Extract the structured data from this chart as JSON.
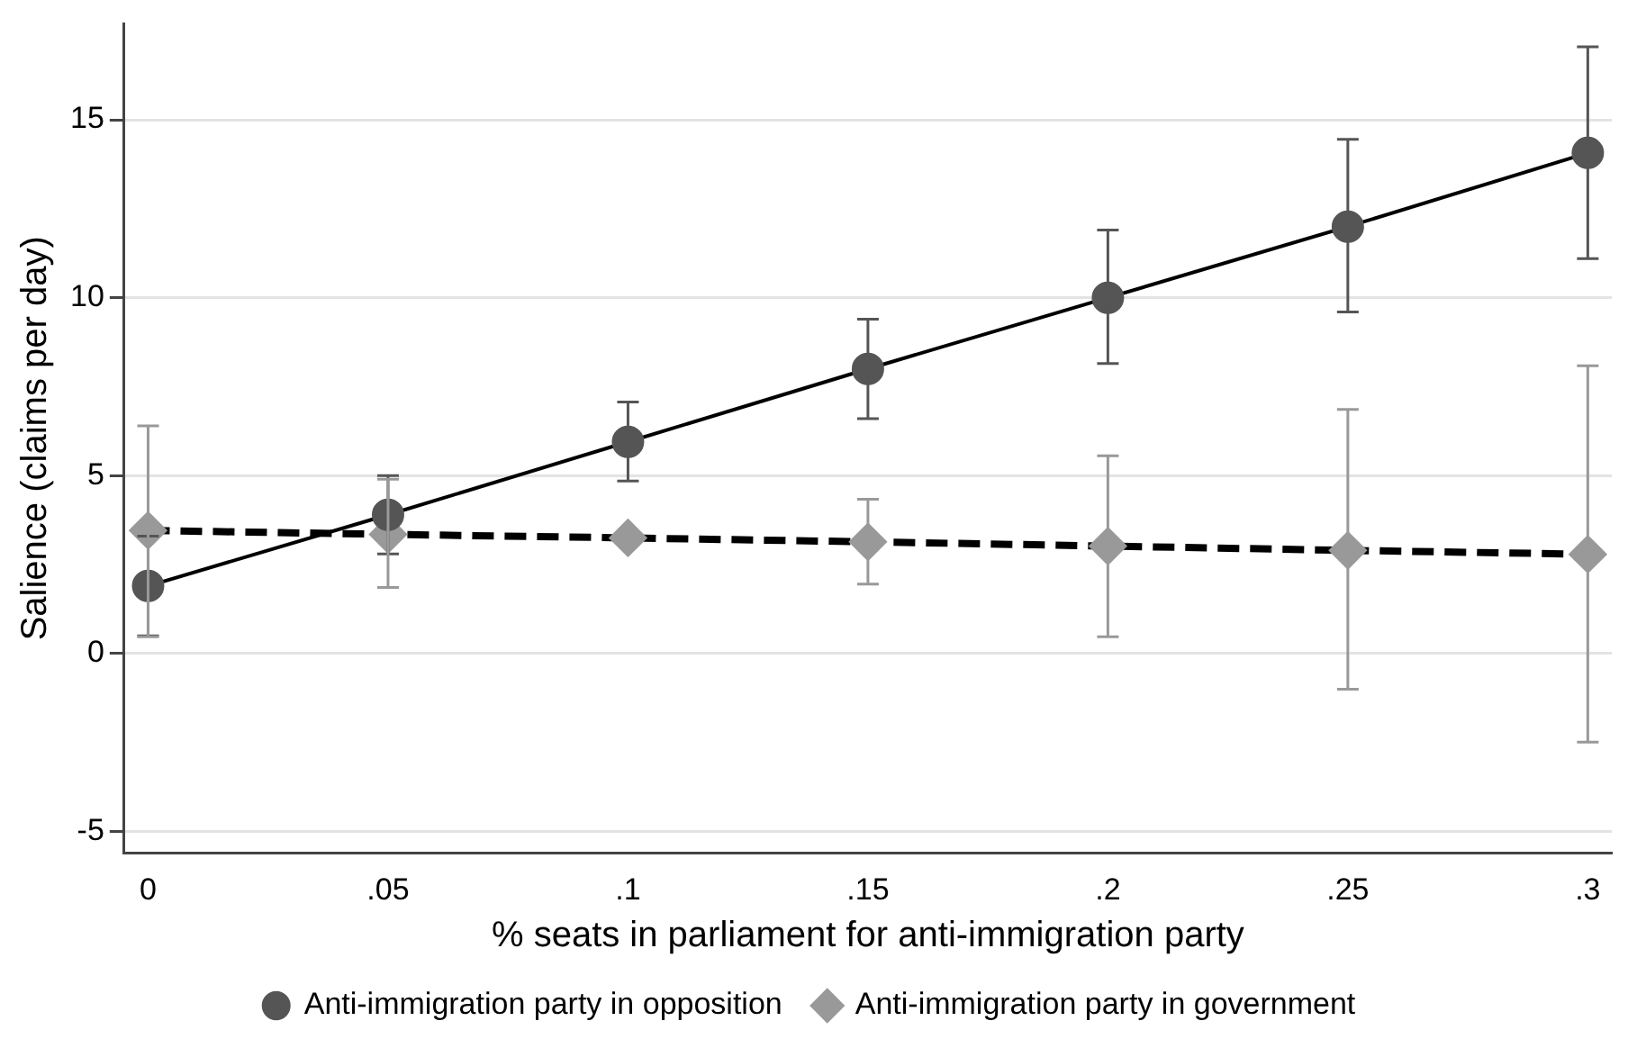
{
  "chart_data": {
    "type": "line",
    "xlabel": "% seats in parliament for anti-immigration party",
    "ylabel": "Salience (claims per day)",
    "x": [
      0,
      0.05,
      0.1,
      0.15,
      0.2,
      0.25,
      0.3
    ],
    "series": [
      {
        "name": "Anti-immigration party in opposition",
        "color": "#555555",
        "marker": "circle",
        "line_style": "solid",
        "values": [
          1.9,
          3.9,
          5.95,
          8.0,
          10.0,
          12.0,
          14.07
        ],
        "errors": [
          [
            0.5,
            3.3
          ],
          [
            2.8,
            5.0
          ],
          [
            4.85,
            7.07
          ],
          [
            6.6,
            9.4
          ],
          [
            8.15,
            11.9
          ],
          [
            9.6,
            14.45
          ],
          [
            11.1,
            17.05
          ]
        ]
      },
      {
        "name": "Anti-immigration party in government",
        "color": "#999999",
        "marker": "diamond",
        "line_style": "dashed",
        "values": [
          3.46,
          3.35,
          3.25,
          3.14,
          3.02,
          2.9,
          2.79
        ],
        "errors": [
          [
            0.47,
            6.4
          ],
          [
            1.86,
            4.9
          ],
          null,
          [
            1.95,
            4.34
          ],
          [
            0.47,
            5.56
          ],
          [
            -1.0,
            6.86
          ],
          [
            -2.49,
            8.09
          ]
        ]
      }
    ],
    "xlim": [
      -0.005,
      0.305
    ],
    "xticks": [
      0,
      {
        "value": 0.05,
        "label": ".05"
      },
      {
        "value": 0.1,
        "label": ".1"
      },
      {
        "value": 0.15,
        "label": ".15"
      },
      {
        "value": 0.2,
        "label": ".2"
      },
      {
        "value": 0.25,
        "label": ".25"
      },
      {
        "value": 0.3,
        "label": ".3"
      }
    ],
    "ylim": [
      -5.6,
      17.7
    ],
    "yticks": [
      -5,
      0,
      5,
      10,
      15
    ],
    "grid": "y",
    "legend": "bottom"
  }
}
